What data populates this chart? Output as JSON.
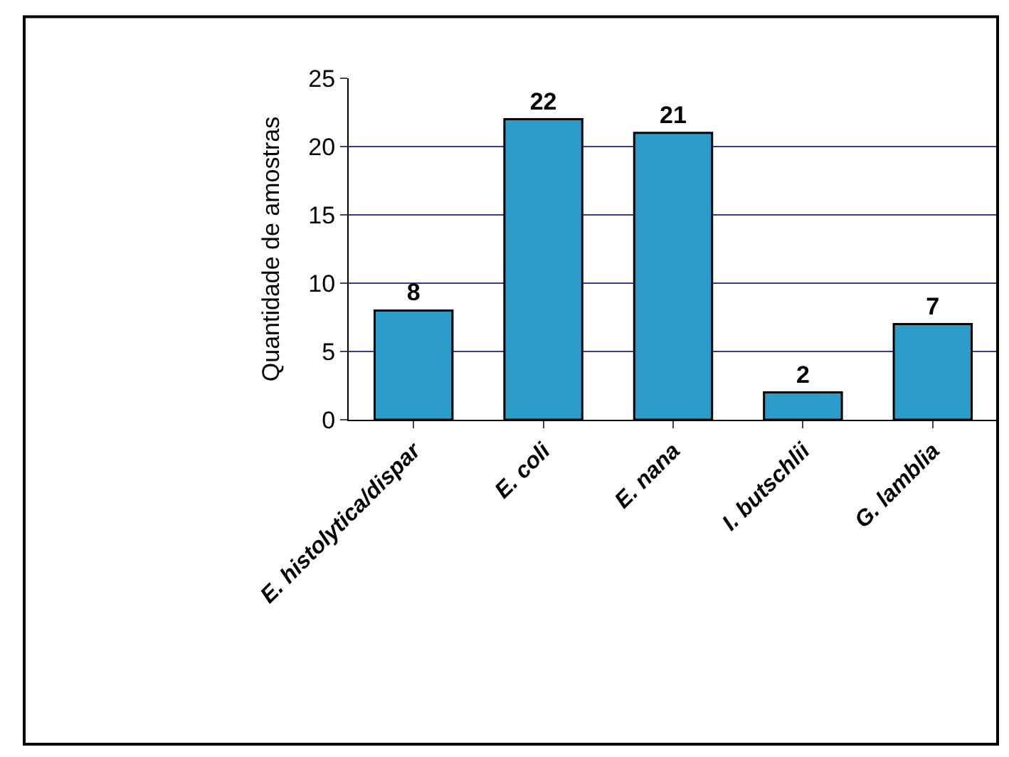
{
  "chart_data": {
    "type": "bar",
    "ylabel": "Quantidade de amostras",
    "categories": [
      "E. histolytica/dispar",
      "E. coli",
      "E. nana",
      "I. butschlii",
      "G. lamblia"
    ],
    "values": [
      8,
      22,
      21,
      2,
      7
    ],
    "color": "#2b9bc8",
    "ylim": [
      0,
      25
    ],
    "yticks": [
      0,
      5,
      10,
      15,
      20,
      25
    ],
    "grid": "y",
    "data_labels": true
  }
}
